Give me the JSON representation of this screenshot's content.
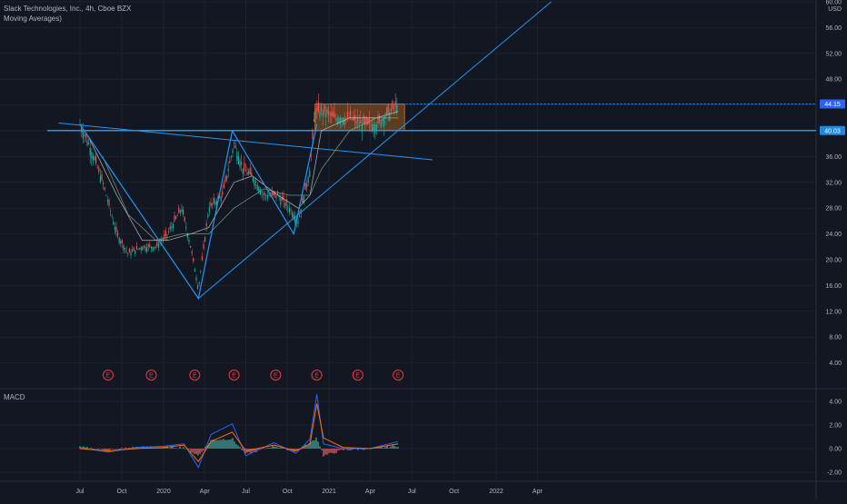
{
  "header": {
    "symbol_line": "Slack Technologies, Inc., 4h, Cboe BZX",
    "indicator_line": "Moving Averages)"
  },
  "macd_label": "MACD",
  "colors": {
    "background": "#131722",
    "grid": "#1e222d",
    "candle_up": "#26a69a",
    "candle_down": "#ef5350",
    "trendline": "#2962ff",
    "drawn_line": "#2196f3",
    "box_fill": "#7a4a22",
    "box_border": "#b5651d",
    "earnings": "#f23645",
    "macd_line": "#2962ff",
    "signal_line": "#ff6d00"
  },
  "chart_data": [
    {
      "type": "line",
      "title": "Slack Technologies, Inc., 4h, Cboe BZX",
      "y_unit": "USD",
      "y_ticks": [
        "60.00",
        "56.00",
        "52.00",
        "48.00",
        "44.00",
        "40.00",
        "36.00",
        "32.00",
        "28.00",
        "24.00",
        "20.00",
        "16.00",
        "12.00",
        "8.00",
        "4.00"
      ],
      "ylim": [
        0,
        60
      ],
      "x_ticks": [
        "Jul",
        "Oct",
        "2020",
        "Apr",
        "Jul",
        "Oct",
        "2021",
        "Apr",
        "Jul",
        "Oct",
        "2022",
        "Apr"
      ],
      "price_tags": [
        {
          "label": "44.15",
          "value": 44.15
        },
        {
          "label": "40.03",
          "value": 40.03
        }
      ],
      "price_series": {
        "name": "price",
        "x": [
          "2019-07-01",
          "2019-07-20",
          "2019-08-20",
          "2019-09-20",
          "2019-10-15",
          "2019-11-15",
          "2019-12-15",
          "2020-01-10",
          "2020-02-10",
          "2020-03-01",
          "2020-03-18",
          "2020-04-10",
          "2020-05-10",
          "2020-06-05",
          "2020-06-25",
          "2020-07-15",
          "2020-08-10",
          "2020-09-10",
          "2020-10-05",
          "2020-10-25",
          "2020-11-20",
          "2020-12-01",
          "2020-12-15",
          "2021-01-15",
          "2021-02-15",
          "2021-03-15",
          "2021-04-15",
          "2021-05-15",
          "2021-06-01"
        ],
        "values": [
          41,
          38,
          32,
          24,
          21,
          22,
          22,
          24,
          28,
          22,
          15.5,
          28,
          30,
          38,
          34,
          33,
          30,
          30,
          28,
          26,
          34,
          43,
          43,
          42,
          42,
          41,
          41,
          43,
          44.15
        ]
      },
      "moving_averages": [
        {
          "x": [
            "2019-07-20",
            "2019-09-20",
            "2019-11-15",
            "2020-01-10",
            "2020-03-01",
            "2020-04-10",
            "2020-06-05",
            "2020-07-15",
            "2020-09-10",
            "2020-10-25",
            "2020-11-20",
            "2020-12-15",
            "2021-02-15",
            "2021-04-15",
            "2021-06-01"
          ],
          "values": [
            39,
            30,
            23,
            23,
            24,
            25,
            32,
            33,
            30,
            28,
            30,
            40,
            42,
            42,
            43
          ]
        },
        {
          "x": [
            "2019-08-20",
            "2019-10-15",
            "2019-12-15",
            "2020-02-10",
            "2020-04-10",
            "2020-06-05",
            "2020-08-10",
            "2020-10-05",
            "2020-11-20",
            "2020-12-15",
            "2021-02-15",
            "2021-04-15",
            "2021-06-01"
          ],
          "values": [
            36,
            27,
            23,
            24,
            24,
            28,
            31,
            30,
            30,
            34,
            40,
            42,
            42
          ]
        }
      ],
      "annotations": {
        "horizontal_lines": [
          44.15,
          40.03
        ],
        "trendlines": [
          {
            "from": {
              "x": "2019-05-15",
              "y": 41.2
            },
            "to": {
              "x": "2021-08-15",
              "y": 35.5
            }
          },
          {
            "from": {
              "x": "2020-03-18",
              "y": 14
            },
            "to": {
              "x": "2022-05-01",
              "y": 60
            }
          }
        ],
        "zigzag": [
          {
            "x": "2019-07-01",
            "y": 41
          },
          {
            "x": "2020-03-18",
            "y": 14
          },
          {
            "x": "2020-06-01",
            "y": 40
          },
          {
            "x": "2020-10-15",
            "y": 24
          },
          {
            "x": "2020-12-05",
            "y": 41
          }
        ],
        "range_box": {
          "x_start": "2020-12-01",
          "x_end": "2021-06-15",
          "y_low": 40.03,
          "y_high": 44.15
        },
        "earnings_markers": {
          "label": "E",
          "x": [
            "2019-09-01",
            "2019-12-05",
            "2020-03-10",
            "2020-06-05",
            "2020-09-05",
            "2020-12-05",
            "2021-03-05",
            "2021-06-01"
          ]
        }
      }
    },
    {
      "type": "line",
      "title": "MACD",
      "y_ticks": [
        "4.00",
        "2.00",
        "0.00",
        "-2.00"
      ],
      "ylim": [
        -3,
        5
      ],
      "series": [
        {
          "x": [
            "2019-07-01",
            "2019-09-01",
            "2019-11-01",
            "2020-01-01",
            "2020-02-15",
            "2020-03-18",
            "2020-04-15",
            "2020-06-01",
            "2020-07-01",
            "2020-09-01",
            "2020-10-20",
            "2020-11-20",
            "2020-12-05",
            "2020-12-20",
            "2021-02-01",
            "2021-04-01",
            "2021-06-01"
          ],
          "values": [
            0.1,
            -0.3,
            0.1,
            0.2,
            0.4,
            -1.6,
            1.2,
            2.1,
            -0.6,
            0.5,
            -0.4,
            0.8,
            4.6,
            0.4,
            0.0,
            0.0,
            0.6
          ]
        },
        {
          "x": [
            "2019-07-01",
            "2019-09-01",
            "2019-11-01",
            "2020-01-01",
            "2020-02-15",
            "2020-03-18",
            "2020-04-15",
            "2020-06-01",
            "2020-07-01",
            "2020-09-01",
            "2020-10-20",
            "2020-11-20",
            "2020-12-05",
            "2020-12-20",
            "2021-02-01",
            "2021-04-01",
            "2021-06-01"
          ],
          "values": [
            0.0,
            -0.2,
            0.0,
            0.1,
            0.3,
            -1.1,
            0.6,
            1.4,
            -0.2,
            0.3,
            -0.2,
            0.4,
            3.8,
            0.9,
            0.1,
            0.0,
            0.4
          ]
        }
      ]
    }
  ]
}
